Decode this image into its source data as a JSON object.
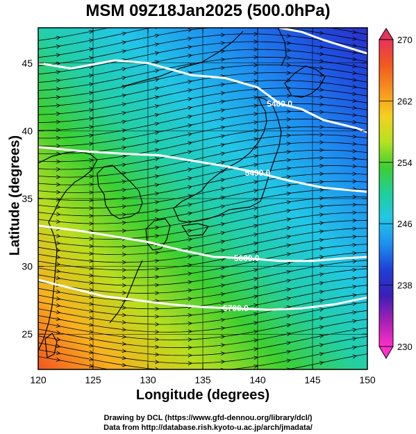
{
  "title": "MSM 09Z18Jan2025 (500.0hPa)",
  "xlabel": "Longitude (degrees)",
  "ylabel": "Latitude  (degrees)",
  "credits": [
    "Drawing by DCL (https://www.gfd-dennou.org/library/dcl/)",
    "Data from http://database.rish.kyoto-u.ac.jp/arch/jmadata/"
  ],
  "map": {
    "lon_range": [
      120,
      150
    ],
    "lat_range": [
      22.4,
      47.6
    ],
    "x_ticks": [
      "120",
      "125",
      "130",
      "135",
      "140",
      "145",
      "150"
    ],
    "y_ticks": [
      "25",
      "30",
      "35",
      "40",
      "45"
    ],
    "colorbar": {
      "range": [
        230,
        270
      ],
      "tick_labels": [
        "270",
        "262",
        "254",
        "246",
        "238",
        "230"
      ],
      "colors": [
        "#e8335a",
        "#f25a1e",
        "#f7931e",
        "#f5d11f",
        "#b5e21f",
        "#3ccf32",
        "#1fd09a",
        "#22c6e6",
        "#1e8ff0",
        "#1f3fd6",
        "#3a1fb8",
        "#a81fb5",
        "#ff2fc9"
      ]
    },
    "contours": [
      {
        "label": "5400.0",
        "points": [
          [
            120,
            45.0
          ],
          [
            123,
            44.6
          ],
          [
            127,
            45.2
          ],
          [
            130,
            45.0
          ],
          [
            134,
            44.1
          ],
          [
            137,
            43.9
          ],
          [
            140,
            43.2
          ],
          [
            142,
            42.0
          ],
          [
            144,
            41.6
          ],
          [
            146,
            40.8
          ],
          [
            149,
            40.2
          ],
          [
            150,
            39.9
          ]
        ]
      },
      {
        "label": "5490.0",
        "points": [
          [
            120,
            38.8
          ],
          [
            124,
            38.5
          ],
          [
            128,
            38.3
          ],
          [
            131,
            38.2
          ],
          [
            134,
            37.8
          ],
          [
            137,
            37.4
          ],
          [
            140,
            36.9
          ],
          [
            143,
            36.3
          ],
          [
            146,
            35.8
          ],
          [
            150,
            35.5
          ]
        ]
      },
      {
        "label": "5600.0",
        "points": [
          [
            120,
            33.0
          ],
          [
            124,
            32.6
          ],
          [
            127,
            32.2
          ],
          [
            130,
            31.8
          ],
          [
            133,
            31.2
          ],
          [
            136,
            30.7
          ],
          [
            139,
            30.6
          ],
          [
            142,
            30.4
          ],
          [
            145,
            30.4
          ],
          [
            148,
            30.6
          ],
          [
            150,
            30.7
          ]
        ]
      },
      {
        "label": "5700.0",
        "points": [
          [
            120,
            29.0
          ],
          [
            123,
            28.4
          ],
          [
            126,
            27.8
          ],
          [
            129,
            27.5
          ],
          [
            132,
            27.2
          ],
          [
            135,
            27.0
          ],
          [
            138,
            26.9
          ],
          [
            141,
            26.8
          ],
          [
            144,
            26.9
          ],
          [
            147,
            27.2
          ],
          [
            150,
            27.7
          ]
        ]
      }
    ],
    "contour_ne": {
      "label": "",
      "points": [
        [
          142,
          47.6
        ],
        [
          144,
          47.3
        ],
        [
          146,
          46.7
        ],
        [
          148,
          46.2
        ],
        [
          150,
          45.7
        ]
      ]
    }
  }
}
